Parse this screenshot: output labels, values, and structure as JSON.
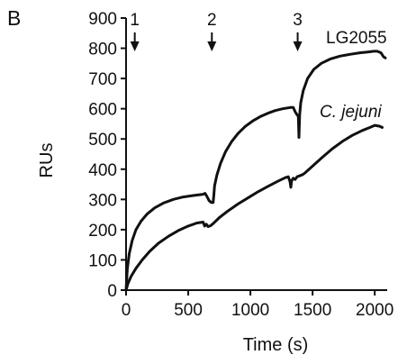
{
  "panel_label": "B",
  "chart_data": {
    "type": "line",
    "title": "",
    "xlabel": "Time (s)",
    "ylabel": "RUs",
    "xlim": [
      0,
      2100
    ],
    "ylim": [
      0,
      900
    ],
    "x_ticks": [
      0,
      500,
      1000,
      1500,
      2000
    ],
    "y_ticks": [
      0,
      100,
      200,
      300,
      400,
      500,
      600,
      700,
      800,
      900
    ],
    "grid": false,
    "injection_markers": [
      {
        "label": "1",
        "x": 70
      },
      {
        "label": "2",
        "x": 690
      },
      {
        "label": "3",
        "x": 1380
      }
    ],
    "series": [
      {
        "name": "LG2055",
        "label_italic": false,
        "points": [
          [
            0,
            0
          ],
          [
            10,
            70
          ],
          [
            25,
            120
          ],
          [
            50,
            165
          ],
          [
            80,
            200
          ],
          [
            120,
            228
          ],
          [
            170,
            252
          ],
          [
            230,
            272
          ],
          [
            300,
            288
          ],
          [
            380,
            300
          ],
          [
            460,
            308
          ],
          [
            540,
            313
          ],
          [
            620,
            317
          ],
          [
            635,
            320
          ],
          [
            650,
            310
          ],
          [
            668,
            296
          ],
          [
            685,
            290
          ],
          [
            700,
            290
          ],
          [
            706,
            315
          ],
          [
            712,
            345
          ],
          [
            730,
            380
          ],
          [
            760,
            420
          ],
          [
            800,
            458
          ],
          [
            850,
            492
          ],
          [
            900,
            518
          ],
          [
            960,
            542
          ],
          [
            1020,
            560
          ],
          [
            1080,
            574
          ],
          [
            1140,
            585
          ],
          [
            1200,
            594
          ],
          [
            1260,
            600
          ],
          [
            1320,
            604
          ],
          [
            1345,
            604
          ],
          [
            1360,
            590
          ],
          [
            1375,
            580
          ],
          [
            1385,
            575
          ],
          [
            1390,
            505
          ],
          [
            1396,
            580
          ],
          [
            1405,
            620
          ],
          [
            1425,
            660
          ],
          [
            1460,
            700
          ],
          [
            1510,
            730
          ],
          [
            1570,
            750
          ],
          [
            1640,
            764
          ],
          [
            1720,
            774
          ],
          [
            1800,
            780
          ],
          [
            1880,
            785
          ],
          [
            1950,
            788
          ],
          [
            1990,
            790
          ],
          [
            2020,
            790
          ],
          [
            2050,
            785
          ],
          [
            2070,
            772
          ],
          [
            2085,
            768
          ]
        ]
      },
      {
        "name": "C. jejuni",
        "label_italic": true,
        "points": [
          [
            0,
            0
          ],
          [
            15,
            22
          ],
          [
            40,
            45
          ],
          [
            80,
            72
          ],
          [
            130,
            100
          ],
          [
            190,
            128
          ],
          [
            260,
            155
          ],
          [
            340,
            178
          ],
          [
            420,
            197
          ],
          [
            500,
            212
          ],
          [
            570,
            222
          ],
          [
            620,
            225
          ],
          [
            632,
            212
          ],
          [
            645,
            218
          ],
          [
            660,
            210
          ],
          [
            680,
            213
          ],
          [
            700,
            220
          ],
          [
            750,
            240
          ],
          [
            820,
            262
          ],
          [
            900,
            285
          ],
          [
            980,
            305
          ],
          [
            1060,
            325
          ],
          [
            1140,
            343
          ],
          [
            1220,
            360
          ],
          [
            1280,
            372
          ],
          [
            1305,
            375
          ],
          [
            1318,
            360
          ],
          [
            1325,
            340
          ],
          [
            1332,
            362
          ],
          [
            1345,
            370
          ],
          [
            1360,
            366
          ],
          [
            1375,
            375
          ],
          [
            1395,
            378
          ],
          [
            1420,
            382
          ],
          [
            1440,
            388
          ],
          [
            1500,
            410
          ],
          [
            1580,
            440
          ],
          [
            1660,
            468
          ],
          [
            1740,
            492
          ],
          [
            1820,
            512
          ],
          [
            1900,
            528
          ],
          [
            1960,
            538
          ],
          [
            2000,
            545
          ],
          [
            2040,
            542
          ],
          [
            2060,
            538
          ]
        ]
      }
    ]
  }
}
